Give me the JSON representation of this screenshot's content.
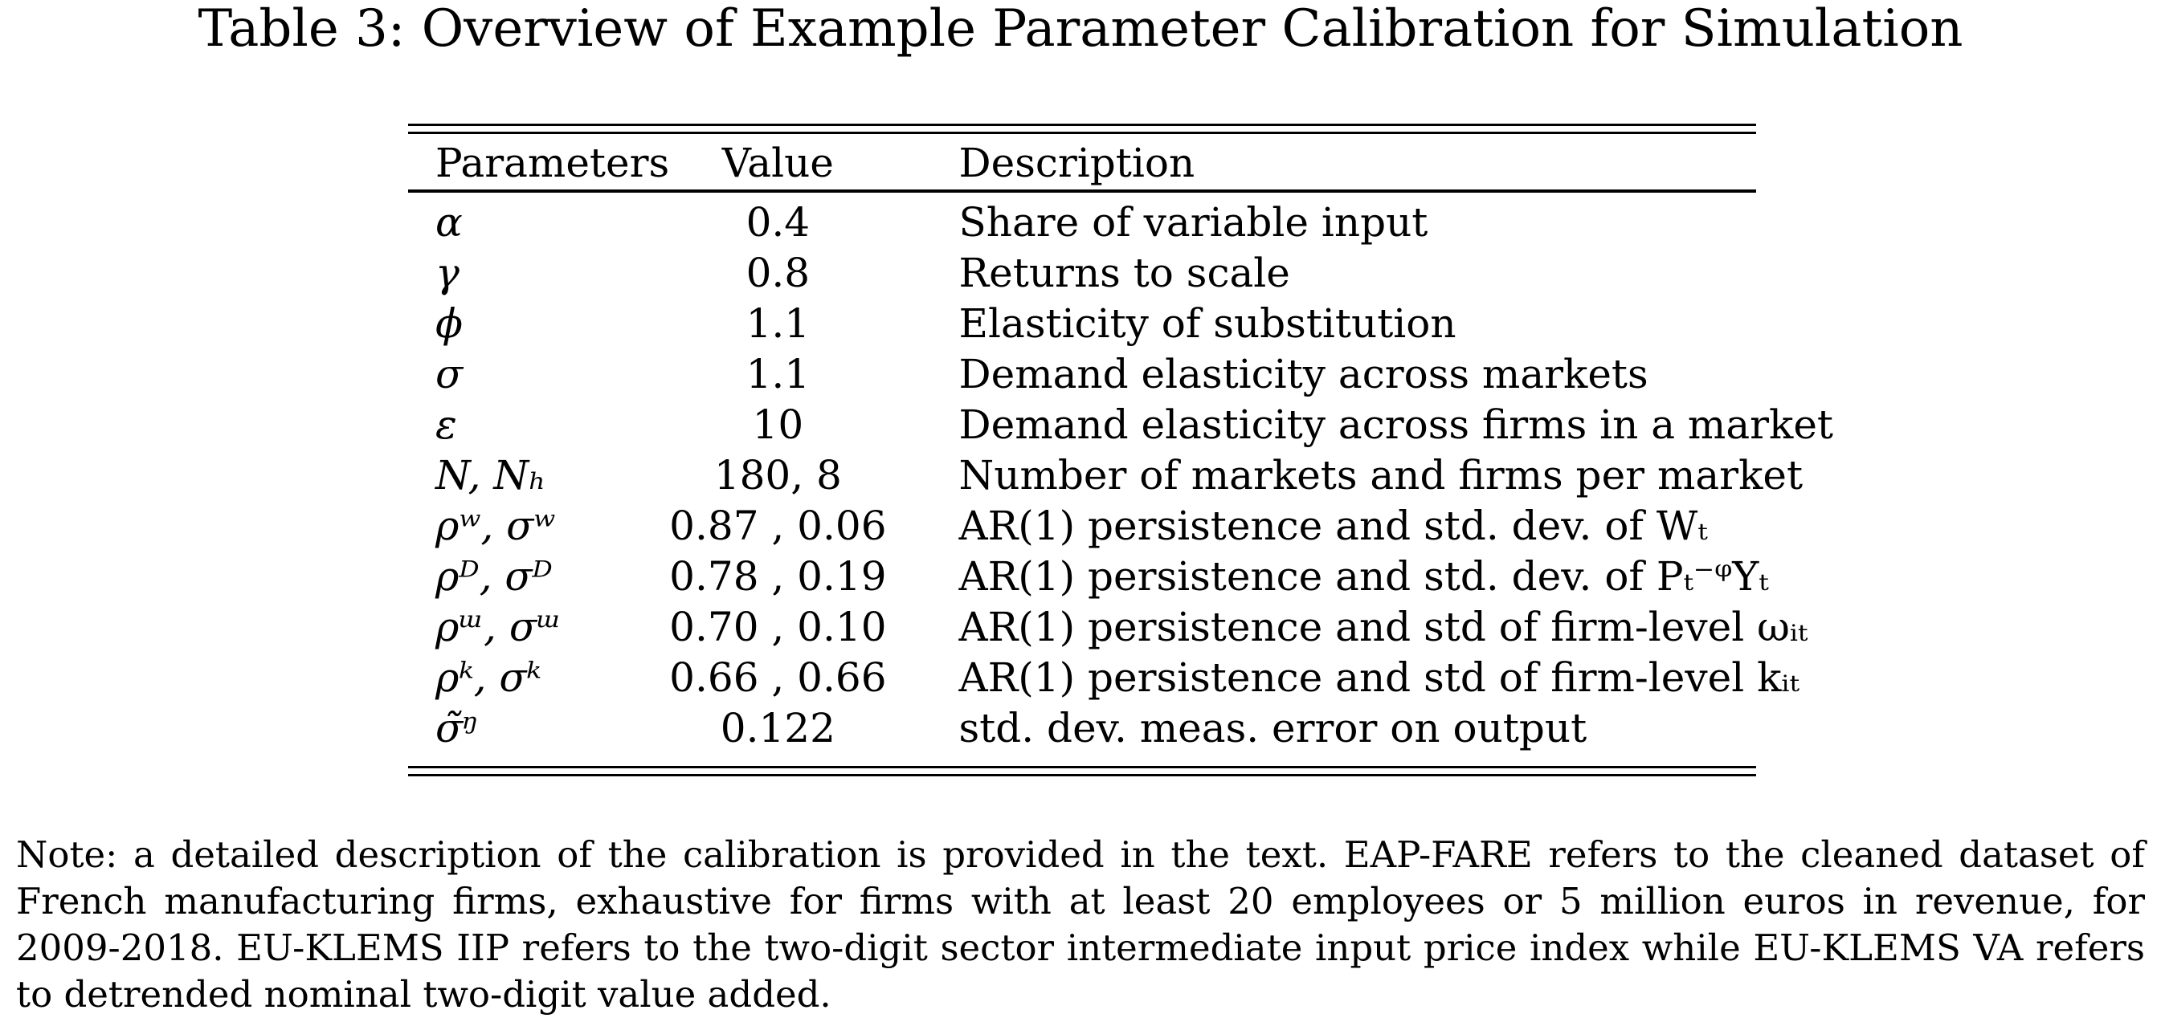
{
  "caption": "Table 3: Overview of Example Parameter Calibration for Simulation",
  "table": {
    "headers": {
      "parameters": "Parameters",
      "value": "Value",
      "description": "Description"
    },
    "rows": [
      {
        "param": "α",
        "value": "0.4",
        "description": "Share of variable input"
      },
      {
        "param": "γ",
        "value": "0.8",
        "description": "Returns to scale"
      },
      {
        "param": "ϕ",
        "value": "1.1",
        "description": "Elasticity of substitution"
      },
      {
        "param": "σ",
        "value": "1.1",
        "description": "Demand elasticity across markets"
      },
      {
        "param": "ε",
        "value": "10",
        "description": "Demand elasticity across firms in a market"
      },
      {
        "param": "N, Nₕ",
        "value": "180, 8",
        "description": "Number of markets and firms per market"
      },
      {
        "param": "ρʷ, σʷ",
        "value": "0.87 , 0.06",
        "description": "AR(1) persistence and std. dev. of Wₜ"
      },
      {
        "param": "ρᴰ, σᴰ",
        "value": "0.78 , 0.19",
        "description": "AR(1) persistence and std. dev. of Pₜ⁻ᵠYₜ"
      },
      {
        "param": "ρᵚ, σᵚ",
        "value": "0.70 , 0.10",
        "description": "AR(1) persistence and std of firm-level ωᵢₜ"
      },
      {
        "param": "ρᵏ, σᵏ",
        "value": "0.66 , 0.66",
        "description": "AR(1) persistence and std of firm-level kᵢₜ"
      },
      {
        "param": "σ̃ᵑ",
        "value": "0.122",
        "description": "std. dev. meas. error on output"
      }
    ]
  },
  "note": "Note: a detailed description of the calibration is provided in the text. EAP-FARE refers to the cleaned dataset of French manufacturing firms, exhaustive for firms with at least 20 employees or 5 million euros in revenue, for 2009-2018. EU-KLEMS IIP refers to the two-digit sector intermediate input price index while EU-KLEMS VA refers to detrended nominal two-digit value added."
}
